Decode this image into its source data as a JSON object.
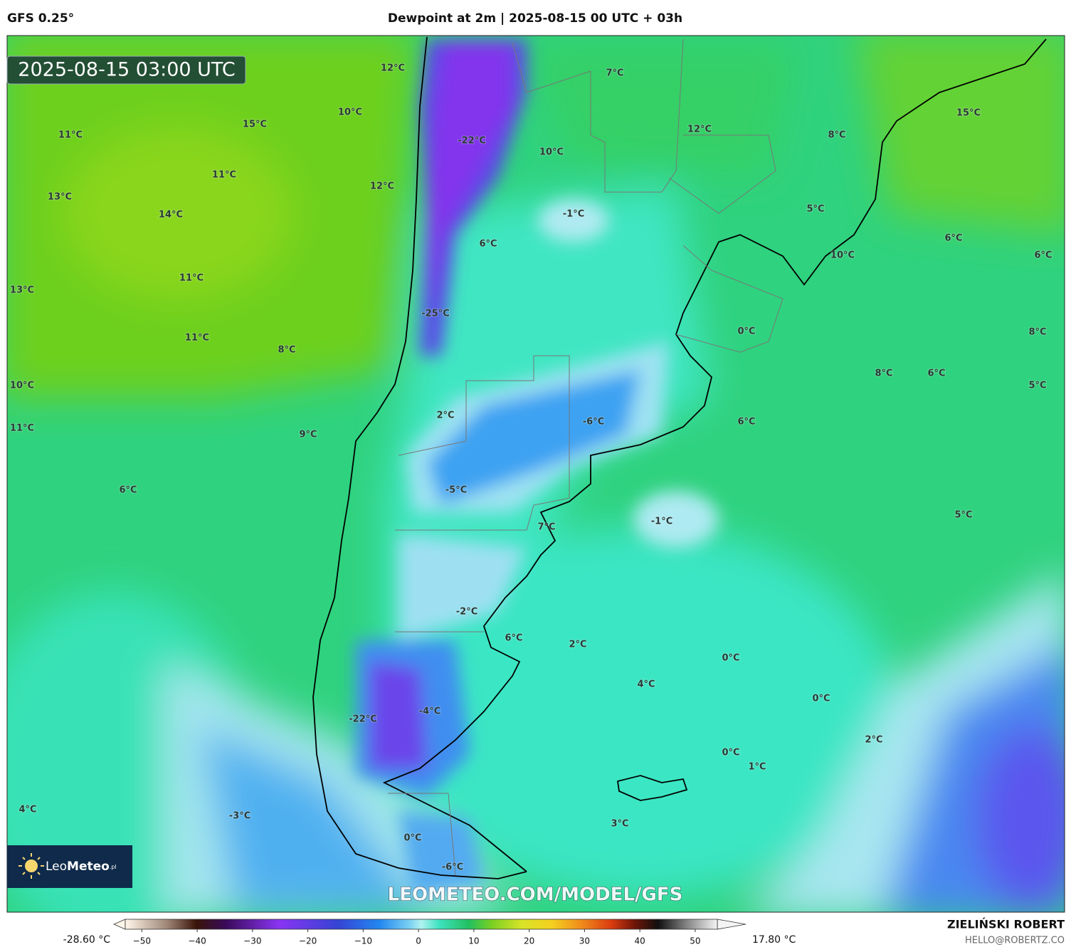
{
  "header": {
    "model": "GFS 0.25°",
    "title": "Dewpoint at 2m | 2025-08-15 00 UTC + 03h"
  },
  "timestamp": "2025-08-15 03:00 UTC",
  "map": {
    "labels": [
      "12°C",
      "7°C",
      "10°C",
      "15°C",
      "11°C",
      "-22°C",
      "12°C",
      "8°C",
      "15°C",
      "10°C",
      "11°C",
      "12°C",
      "13°C",
      "14°C",
      "-1°C",
      "5°C",
      "6°C",
      "6°C",
      "10°C",
      "6°C",
      "11°C",
      "13°C",
      "-25°C",
      "11°C",
      "0°C",
      "8°C",
      "8°C",
      "8°C",
      "6°C",
      "10°C",
      "5°C",
      "2°C",
      "-6°C",
      "6°C",
      "11°C",
      "9°C",
      "6°C",
      "-5°C",
      "-1°C",
      "5°C",
      "7°C",
      "-2°C",
      "6°C",
      "2°C",
      "0°C",
      "4°C",
      "0°C",
      "-4°C",
      "-22°C",
      "2°C",
      "0°C",
      "1°C",
      "4°C",
      "-3°C",
      "3°C",
      "0°C",
      "-6°C"
    ]
  },
  "logo": {
    "part1": "Leo",
    "part2": "Meteo",
    "suffix": ".pl"
  },
  "watermark": "LEOMETEO.COM/MODEL/GFS",
  "colorbar": {
    "min_label": "-28.60 °C",
    "max_label": "17.80 °C",
    "lim": [
      -53,
      54
    ],
    "ticks": [
      {
        "value": -50,
        "label": "−50"
      },
      {
        "value": -40,
        "label": "−40"
      },
      {
        "value": -30,
        "label": "−30"
      },
      {
        "value": -20,
        "label": "−20"
      },
      {
        "value": -10,
        "label": "−10"
      },
      0,
      10,
      20,
      30,
      40,
      50
    ]
  },
  "credits": {
    "author": "ZIELIŃSKI ROBERT",
    "email": "HELLO@ROBERTZ.CO"
  }
}
